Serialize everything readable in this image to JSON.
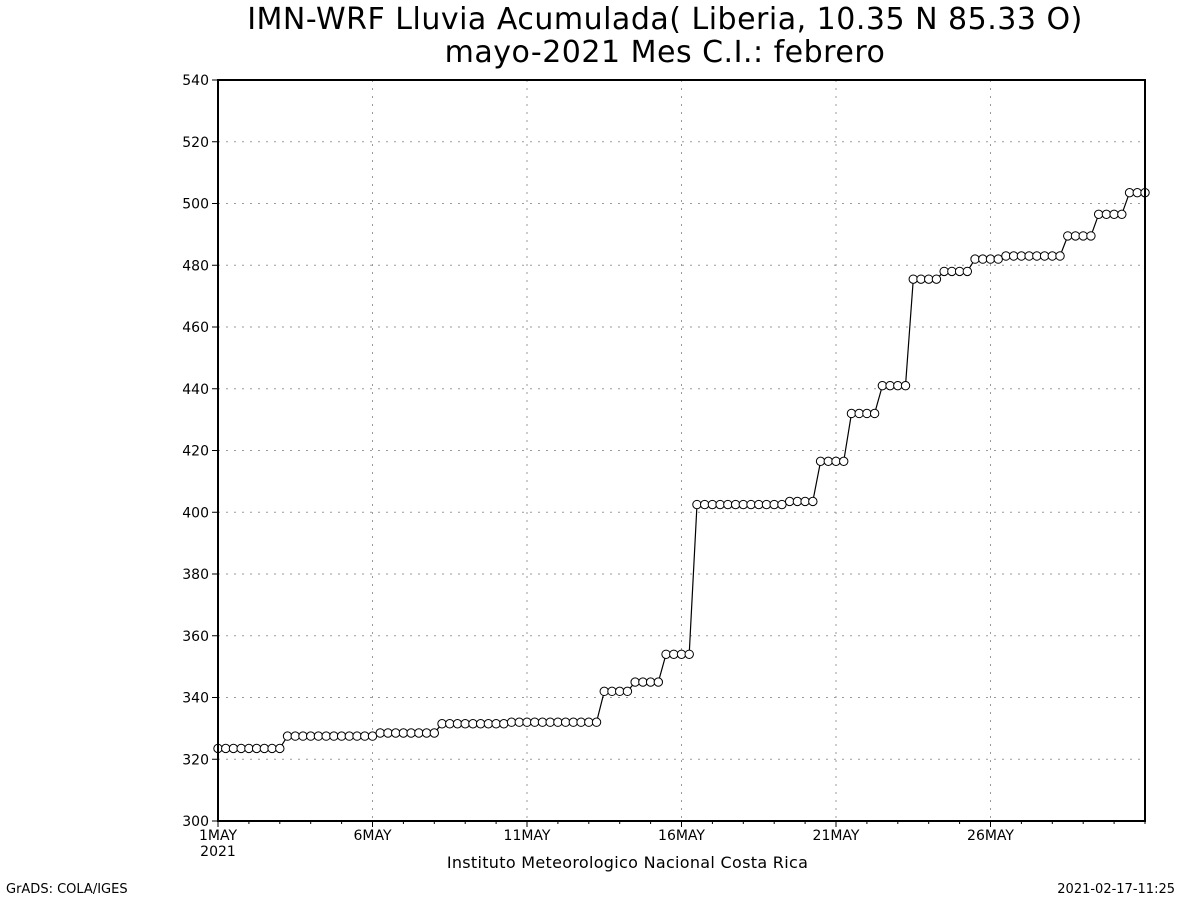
{
  "title_line1": "IMN-WRF  Lluvia Acumulada( Liberia, 10.35  N 85.33  O)",
  "title_line2": "mayo-2021 Mes C.I.: febrero",
  "credit": "Instituto Meteorologico Nacional Costa Rica",
  "footer_left": "GrADS: COLA/IGES",
  "footer_right": "2021-02-17-11:25",
  "chart_data": {
    "type": "line",
    "title": "IMN-WRF  Lluvia Acumulada( Liberia, 10.35  N 85.33  O)",
    "subtitle": "mayo-2021 Mes C.I.: febrero",
    "xlabel": "",
    "ylabel": "",
    "x_unit": "day of May 2021",
    "xlim": [
      1,
      31
    ],
    "ylim": [
      300,
      540
    ],
    "y_ticks": [
      300,
      320,
      340,
      360,
      380,
      400,
      420,
      440,
      460,
      480,
      500,
      520,
      540
    ],
    "x_ticks": [
      {
        "value": 1,
        "label": "1MAY",
        "sublabel": "2021"
      },
      {
        "value": 6,
        "label": "6MAY"
      },
      {
        "value": 11,
        "label": "11MAY"
      },
      {
        "value": 16,
        "label": "16MAY"
      },
      {
        "value": 21,
        "label": "21MAY"
      },
      {
        "value": 26,
        "label": "26MAY"
      }
    ],
    "grid": true,
    "marker": "open-circle",
    "series": [
      {
        "x": [
          1.0,
          1.25,
          1.5,
          1.75,
          2.0,
          2.25,
          2.5,
          2.75,
          3.0,
          3.25,
          3.5,
          3.75,
          4.0,
          4.25,
          4.5,
          4.75,
          5.0,
          5.25,
          5.5,
          5.75,
          6.0,
          6.25,
          6.5,
          6.75,
          7.0,
          7.25,
          7.5,
          7.75,
          8.0,
          8.25,
          8.5,
          8.75,
          9.0,
          9.25,
          9.5,
          9.75,
          10.0,
          10.25,
          10.5,
          10.75,
          11.0,
          11.25,
          11.5,
          11.75,
          12.0,
          12.25,
          12.5,
          12.75,
          13.0,
          13.25,
          13.5,
          13.75,
          14.0,
          14.25,
          14.5,
          14.75,
          15.0,
          15.25,
          15.5,
          15.75,
          16.0,
          16.25,
          16.5,
          16.75,
          17.0,
          17.25,
          17.5,
          17.75,
          18.0,
          18.25,
          18.5,
          18.75,
          19.0,
          19.25,
          19.5,
          19.75,
          20.0,
          20.25,
          20.5,
          20.75,
          21.0,
          21.25,
          21.5,
          21.75,
          22.0,
          22.25,
          22.5,
          22.75,
          23.0,
          23.25,
          23.5,
          23.75,
          24.0,
          24.25,
          24.5,
          24.75,
          25.0,
          25.25,
          25.5,
          25.75,
          26.0,
          26.25,
          26.5,
          26.75,
          27.0,
          27.25,
          27.5,
          27.75,
          28.0,
          28.25,
          28.5,
          28.75,
          29.0,
          29.25,
          29.5,
          29.75,
          30.0,
          30.25,
          30.5,
          30.75,
          31.0
        ],
        "values": [
          323.5,
          323.5,
          323.5,
          323.5,
          323.5,
          323.5,
          323.5,
          323.5,
          323.5,
          327.5,
          327.5,
          327.5,
          327.5,
          327.5,
          327.5,
          327.5,
          327.5,
          327.5,
          327.5,
          327.5,
          327.5,
          328.5,
          328.5,
          328.5,
          328.5,
          328.5,
          328.5,
          328.5,
          328.5,
          331.5,
          331.5,
          331.5,
          331.5,
          331.5,
          331.5,
          331.5,
          331.5,
          331.5,
          332.0,
          332.0,
          332.0,
          332.0,
          332.0,
          332.0,
          332.0,
          332.0,
          332.0,
          332.0,
          332.0,
          332.0,
          342.0,
          342.0,
          342.0,
          342.0,
          345.0,
          345.0,
          345.0,
          345.0,
          354.0,
          354.0,
          354.0,
          354.0,
          402.5,
          402.5,
          402.5,
          402.5,
          402.5,
          402.5,
          402.5,
          402.5,
          402.5,
          402.5,
          402.5,
          402.5,
          403.5,
          403.5,
          403.5,
          403.5,
          416.5,
          416.5,
          416.5,
          416.5,
          432.0,
          432.0,
          432.0,
          432.0,
          441.0,
          441.0,
          441.0,
          441.0,
          475.5,
          475.5,
          475.5,
          475.5,
          478.0,
          478.0,
          478.0,
          478.0,
          482.0,
          482.0,
          482.0,
          482.0,
          483.0,
          483.0,
          483.0,
          483.0,
          483.0,
          483.0,
          483.0,
          483.0,
          489.5,
          489.5,
          489.5,
          489.5,
          496.5,
          496.5,
          496.5,
          496.5,
          503.5,
          503.5,
          503.5
        ]
      }
    ]
  }
}
